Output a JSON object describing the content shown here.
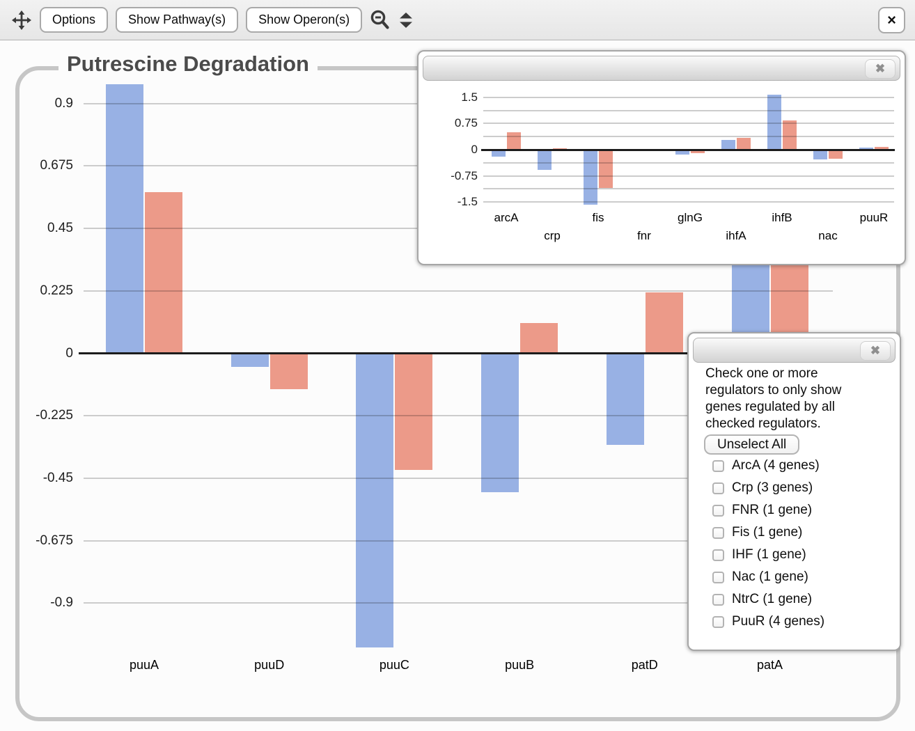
{
  "toolbar": {
    "options": "Options",
    "show_pathways": "Show Pathway(s)",
    "show_operons": "Show Operon(s)",
    "close_glyph": "×",
    "icons": {
      "move": "four-direction-move",
      "zoom_out": "magnifier-with-minus",
      "stepper": "up-down-arrows"
    }
  },
  "panels": {
    "close_glyph": "✖"
  },
  "filter_panel": {
    "instructions": "Check one or more regulators to only show genes regulated by all checked regulators.",
    "unselect_all": "Unselect All",
    "checkboxes": [
      {
        "label": "ArcA (4 genes)",
        "checked": false
      },
      {
        "label": "Crp (3 genes)",
        "checked": false
      },
      {
        "label": "FNR (1 gene)",
        "checked": false
      },
      {
        "label": "Fis (1 gene)",
        "checked": false
      },
      {
        "label": "IHF (1 gene)",
        "checked": false
      },
      {
        "label": "Nac (1 gene)",
        "checked": false
      },
      {
        "label": "NtrC (1 gene)",
        "checked": false
      },
      {
        "label": "PuuR (4 genes)",
        "checked": false
      }
    ]
  },
  "colors": {
    "bar_blue": "#98b1e4",
    "bar_red": "#ec9a89",
    "gridline": "#cccccc",
    "zero_line": "#1c1c1c",
    "frame_border": "#c6c6c6"
  },
  "chart_data": [
    {
      "id": "main",
      "type": "bar",
      "title": "Putrescine Degradation",
      "categories": [
        "puuA",
        "puuD",
        "puuC",
        "puuB",
        "patD",
        "patA"
      ],
      "series": [
        {
          "name": "blue",
          "values": [
            0.97,
            -0.05,
            -1.06,
            -0.5,
            -0.33,
            0.5
          ]
        },
        {
          "name": "red",
          "values": [
            0.58,
            -0.13,
            -0.42,
            0.11,
            0.22,
            0.5
          ]
        }
      ],
      "yticks": [
        0.9,
        0.675,
        0.45,
        0.225,
        0,
        -0.225,
        -0.45,
        -0.675,
        -0.9
      ],
      "ytick_labels": [
        "0.9",
        "0.675",
        "0.45",
        "0.225",
        "0",
        "-0.225",
        "-0.45",
        "-0.675",
        "-0.9"
      ],
      "ylim": [
        -1.07,
        0.99
      ],
      "grid": true,
      "legend": "none",
      "note": "patA bar tops are hidden behind the floating regulator-chart panel; 0.5 is a lower-bound estimate of the occluded values"
    },
    {
      "id": "inset",
      "type": "bar",
      "title": "",
      "categories": [
        "arcA",
        "crp",
        "fis",
        "fnr",
        "glnG",
        "ihfA",
        "ihfB",
        "nac",
        "puuR"
      ],
      "series": [
        {
          "name": "blue",
          "values": [
            -0.2,
            -0.58,
            -1.58,
            0,
            -0.13,
            0.28,
            1.57,
            -0.28,
            0.05
          ]
        },
        {
          "name": "red",
          "values": [
            0.5,
            0.03,
            -1.1,
            0,
            -0.1,
            0.34,
            0.83,
            -0.25,
            0.08
          ]
        }
      ],
      "yticks": [
        1.5,
        0.75,
        0,
        -0.75,
        -1.5
      ],
      "ytick_labels": [
        "1.5",
        "0.75",
        "0",
        "-0.75",
        "-1.5"
      ],
      "grid_step": 0.375,
      "ylim": [
        -1.73,
        1.85
      ],
      "grid": true,
      "legend": "none"
    }
  ]
}
